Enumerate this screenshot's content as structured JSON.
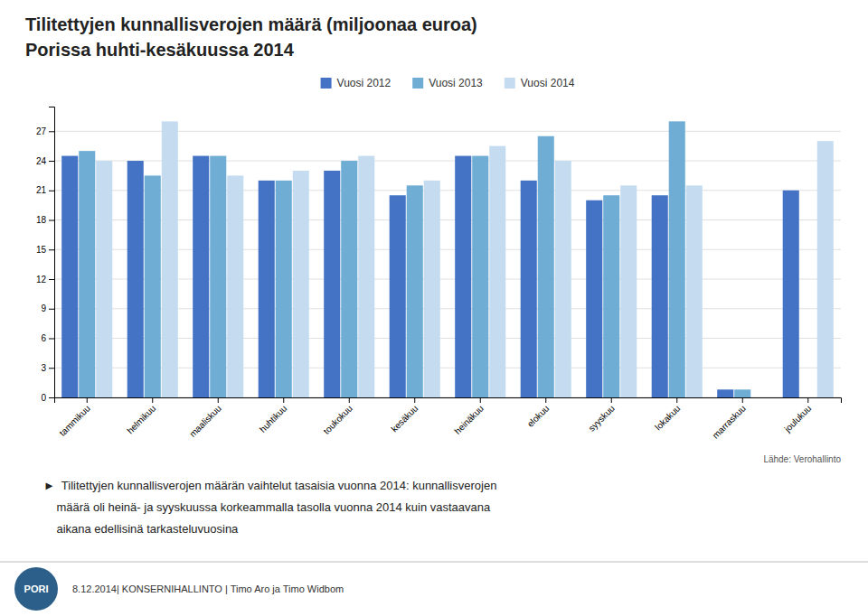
{
  "chart_data": {
    "type": "bar",
    "title": "Tilitettyjen kunnallisverojen määrä (miljoonaa euroa)",
    "subtitle": "Porissa huhti-kesäkuussa 2014",
    "categories": [
      "tammikuu",
      "helmikuu",
      "maaliskuu",
      "huhtikuu",
      "toukokuu",
      "kesäkuu",
      "heinäkuu",
      "elokuu",
      "syyskuu",
      "lokakuu",
      "marraskuu",
      "joulukuu"
    ],
    "series": [
      {
        "name": "Vuosi 2012",
        "color": "#4472C4",
        "values": [
          24.5,
          24.0,
          24.5,
          22.0,
          23.0,
          20.5,
          24.5,
          22.0,
          20.0,
          20.5,
          0.8,
          21.0
        ]
      },
      {
        "name": "Vuosi 2013",
        "color": "#70ADD4",
        "values": [
          25.0,
          22.5,
          24.5,
          22.0,
          24.0,
          21.5,
          24.5,
          26.5,
          20.5,
          28.0,
          0.8,
          0.0
        ]
      },
      {
        "name": "Vuosi 2014",
        "color": "#C5DCF0",
        "values": [
          24.0,
          28.0,
          22.5,
          23.0,
          24.5,
          22.0,
          25.5,
          24.0,
          21.5,
          21.5,
          0.0,
          26.0
        ]
      }
    ],
    "ylim": [
      0,
      29.5
    ],
    "yticks": [
      0,
      3,
      6,
      9,
      12,
      15,
      18,
      21,
      24,
      27
    ],
    "grid": true,
    "legend": "top",
    "annotations": [
      "Lähde: Verohallinto",
      "►  Tilitettyjen kunnallisverojen määrän vaihtelut tasaisia vuonna 2014: kunnallisverojen",
      "    määrä oli heinä- ja syyskuussa korkeammalla tasolla vuonna 2014 kuin vastaavana",
      "    aikana edellisinä tarkasteluvuosina",
      "8.12.2014| KONSERNIHALLINTO | Timo Aro ja Timo Widbom",
      "PORI"
    ]
  }
}
